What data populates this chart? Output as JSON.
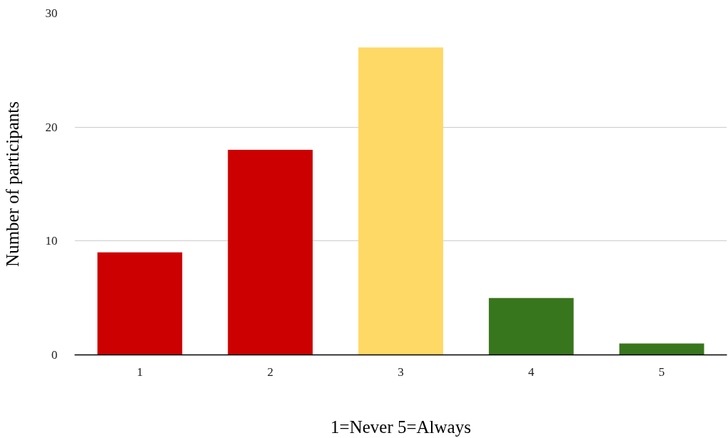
{
  "chart_data": {
    "type": "bar",
    "categories": [
      "1",
      "2",
      "3",
      "4",
      "5"
    ],
    "values": [
      9,
      18,
      27,
      5,
      1
    ],
    "colors": [
      "#cc0000",
      "#cc0000",
      "#ffd966",
      "#38761d",
      "#38761d"
    ],
    "xlabel": "1=Never 5=Always",
    "ylabel": "Number of participants",
    "ylim": [
      0,
      30
    ],
    "yticks": [
      0,
      10,
      20,
      30
    ],
    "grid": "y"
  }
}
